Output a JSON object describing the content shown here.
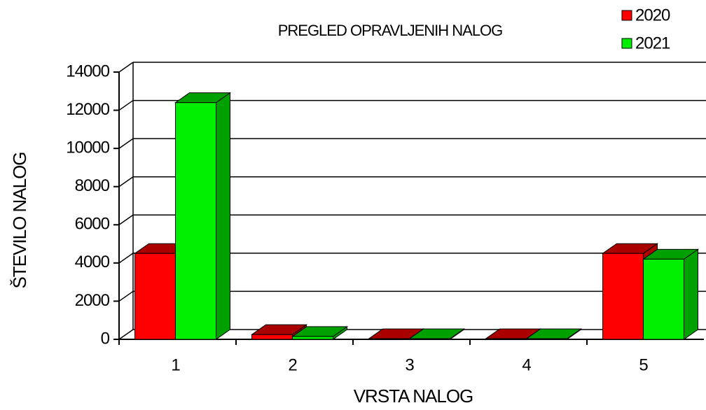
{
  "chart_data": {
    "type": "bar3d",
    "title": "PREGLED OPRAVLJENIH NALOG",
    "xlabel": "VRSTA NALOG",
    "ylabel": "ŠTEVILO NALOG",
    "categories": [
      "1",
      "2",
      "3",
      "4",
      "5"
    ],
    "series": [
      {
        "name": "2020",
        "color": "#ff0000",
        "side": "#aa0000",
        "values": [
          4500,
          250,
          30,
          30,
          4500
        ]
      },
      {
        "name": "2021",
        "color": "#00ee00",
        "side": "#00a000",
        "values": [
          12400,
          150,
          30,
          30,
          4200
        ]
      }
    ],
    "ylim": [
      0,
      14000
    ],
    "yticks": [
      0,
      2000,
      4000,
      6000,
      8000,
      10000,
      12000,
      14000
    ],
    "grid": true
  }
}
